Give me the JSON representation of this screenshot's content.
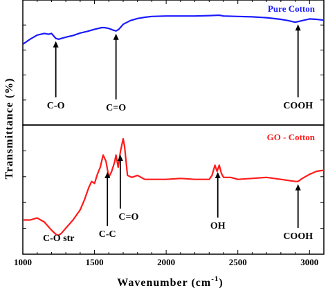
{
  "chart_data": [
    {
      "type": "line",
      "panel": "top",
      "series": [
        {
          "name": "Pure Cotton",
          "color": "#1a1aff",
          "x": [
            1000,
            1050,
            1100,
            1150,
            1180,
            1200,
            1215,
            1230,
            1250,
            1270,
            1300,
            1350,
            1400,
            1450,
            1500,
            1550,
            1570,
            1600,
            1630,
            1650,
            1670,
            1700,
            1750,
            1800,
            1850,
            1900,
            2000,
            2100,
            2200,
            2300,
            2370,
            2400,
            2500,
            2600,
            2700,
            2800,
            2850,
            2900,
            2950,
            3000,
            3050,
            3100
          ],
          "values": [
            0.1,
            0.22,
            0.32,
            0.36,
            0.34,
            0.36,
            0.3,
            0.24,
            0.22,
            0.24,
            0.27,
            0.31,
            0.37,
            0.41,
            0.46,
            0.5,
            0.5,
            0.48,
            0.44,
            0.42,
            0.46,
            0.58,
            0.67,
            0.72,
            0.75,
            0.77,
            0.78,
            0.78,
            0.78,
            0.79,
            0.8,
            0.78,
            0.77,
            0.76,
            0.74,
            0.7,
            0.67,
            0.63,
            0.67,
            0.71,
            0.7,
            0.68
          ]
        }
      ],
      "annotations": [
        {
          "label": "C-O",
          "x": 1230
        },
        {
          "label": "C=O",
          "x": 1650
        },
        {
          "label": "COOH",
          "x": 2920
        }
      ]
    },
    {
      "type": "line",
      "panel": "bottom",
      "series": [
        {
          "name": "GO - Cotton",
          "color": "#ff1a1a",
          "x": [
            1000,
            1050,
            1100,
            1150,
            1200,
            1230,
            1250,
            1270,
            1300,
            1350,
            1400,
            1430,
            1460,
            1480,
            1500,
            1520,
            1540,
            1560,
            1580,
            1600,
            1620,
            1640,
            1650,
            1665,
            1680,
            1700,
            1710,
            1730,
            1760,
            1800,
            1850,
            1900,
            2000,
            2100,
            2200,
            2300,
            2320,
            2340,
            2355,
            2370,
            2385,
            2400,
            2450,
            2500,
            2600,
            2700,
            2800,
            2900,
            2920,
            2950,
            3000,
            3050,
            3100
          ],
          "values": [
            0.18,
            0.18,
            0.2,
            0.16,
            0.08,
            0.04,
            0.03,
            0.05,
            0.1,
            0.18,
            0.28,
            0.38,
            0.5,
            0.56,
            0.54,
            0.63,
            0.7,
            0.82,
            0.76,
            0.6,
            0.66,
            0.75,
            0.82,
            0.7,
            0.85,
            0.98,
            0.9,
            0.62,
            0.6,
            0.62,
            0.58,
            0.58,
            0.58,
            0.59,
            0.58,
            0.58,
            0.62,
            0.72,
            0.66,
            0.72,
            0.64,
            0.6,
            0.6,
            0.58,
            0.59,
            0.6,
            0.58,
            0.56,
            0.56,
            0.59,
            0.63,
            0.66,
            0.67
          ]
        }
      ],
      "annotations": [
        {
          "label": "C-O str",
          "x": 1250
        },
        {
          "label": "C-C",
          "x": 1590
        },
        {
          "label": "C=O",
          "x": 1680
        },
        {
          "label": "OH",
          "x": 2360
        },
        {
          "label": "COOH",
          "x": 2920
        }
      ]
    }
  ],
  "xaxis": {
    "label": "Wavenumber (cm",
    "label_sup": "-1",
    "label_close": ")",
    "range": [
      1000,
      3100
    ],
    "ticks": [
      "1000",
      "1500",
      "2000",
      "2500",
      "3000"
    ]
  },
  "yaxis": {
    "label": "Transmittance (%)"
  }
}
